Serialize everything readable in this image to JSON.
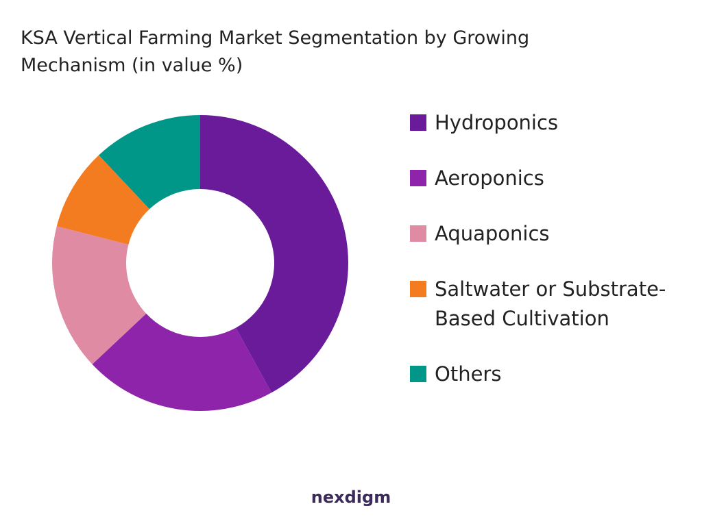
{
  "chart_data": {
    "type": "donut",
    "title": "KSA Vertical Farming Market Segmentation by Growing Mechanism (in value %)",
    "categories": [
      "Hydroponics",
      "Aeroponics",
      "Aquaponics",
      "Saltwater or Substrate-Based Cultivation",
      "Others"
    ],
    "values": [
      42,
      21,
      16,
      9,
      12
    ],
    "colors": [
      "#6a1b9a",
      "#8e24aa",
      "#de8ba3",
      "#f47c20",
      "#009688"
    ],
    "brand": "nexdigm"
  }
}
